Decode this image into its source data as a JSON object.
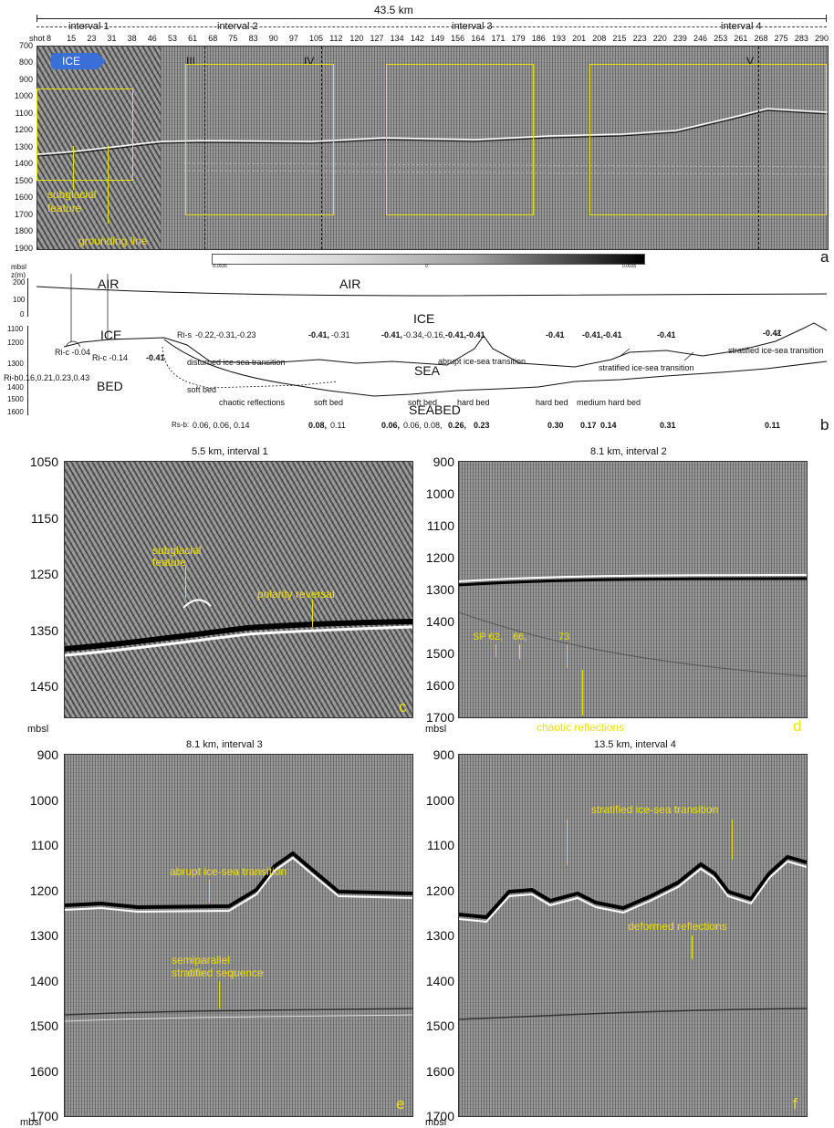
{
  "panel_a": {
    "total_length": "43.5 km",
    "intervals": [
      "interval 1",
      "interval 2",
      "interval 3",
      "interval 4"
    ],
    "shot_label": "shot",
    "shots": [
      "8",
      "15",
      "23",
      "31",
      "38",
      "46",
      "53",
      "61",
      "68",
      "75",
      "83",
      "90",
      "97",
      "105",
      "112",
      "120",
      "127",
      "134",
      "142",
      "149",
      "156",
      "164",
      "171",
      "179",
      "186",
      "193",
      "201",
      "208",
      "215",
      "223",
      "220",
      "239",
      "246",
      "253",
      "261",
      "268",
      "275",
      "283",
      "290"
    ],
    "depth_ticks": [
      "700",
      "800",
      "900",
      "1000",
      "1100",
      "1200",
      "1300",
      "1400",
      "1500",
      "1600",
      "1700",
      "1800",
      "1900"
    ],
    "depth_unit": "mbsl",
    "badge": "ICE",
    "markers": [
      "III",
      "IV",
      "V"
    ],
    "annotations": {
      "subglacial": "subglacial\nfeature",
      "grounding": "grounding line"
    },
    "letter": "a"
  },
  "panel_b": {
    "unit1": "mbsl",
    "unit2": "z(m)",
    "upper_ticks": [
      "200",
      "100",
      "0"
    ],
    "lower_ticks": [
      "1100",
      "1200",
      "1300",
      "1400",
      "1500",
      "1600"
    ],
    "air_left": "AIR",
    "air_center": "AIR",
    "ice_left": "ICE",
    "ice_center": "ICE",
    "sea": "SEA",
    "bed": "BED",
    "seabed": "SEABED",
    "r_is_label": "Ri-s",
    "r_is_values": [
      "-0.22,-0.31,-0.23",
      "-0.41,",
      "-0.31",
      "-0.41,",
      "-0.34,-0.16,",
      "-0.41,-0.41",
      "-0.41",
      "-0.41,-0.41",
      "-0.41",
      "-0.41"
    ],
    "r_ic_a": "Ri-c -0.04",
    "r_ic_b": "Ri-c -0.14",
    "r_ic_b_bold": "-0.41",
    "r_bb_left": "Ri-b0.16,0.21,0.23,0.43",
    "transitions": [
      "disturbed ice-sea transition",
      "abrupt ice-sea transition",
      "stratified ice-sea transition",
      "stratified ice-sea transition"
    ],
    "bed_labels": [
      "soft bed",
      "chaotic reflections",
      "soft bed",
      "soft bed",
      "hard bed",
      "hard bed",
      "medium hard bed"
    ],
    "r_sb_label": "Rs-b:",
    "r_sb_values": [
      "0.06, 0.06, 0.14",
      "0.08,",
      "0.11",
      "0.06,",
      "0.06, 0.08,",
      "0.26,",
      "0.23",
      "0.30",
      "0.17",
      "0.14",
      "0.31",
      "0.11"
    ],
    "letter": "b",
    "colorbar_left": "-0.0035",
    "colorbar_mid": "0",
    "colorbar_right": "0.0035"
  },
  "panel_c": {
    "title": "5.5 km, interval 1",
    "ticks": [
      "1050",
      "1150",
      "1250",
      "1350",
      "1450"
    ],
    "unit": "mbsl",
    "labels": [
      "subglacial\nfeature",
      "polarity reversal"
    ],
    "letter": "c"
  },
  "panel_d": {
    "title": "8.1 km, interval 2",
    "ticks": [
      "900",
      "1000",
      "1100",
      "1200",
      "1300",
      "1400",
      "1500",
      "1600",
      "1700"
    ],
    "unit": "mbsl",
    "labels": [
      "SP 62,",
      "66,",
      "73",
      "chaotic reflections"
    ],
    "letter": "d"
  },
  "panel_e": {
    "title": "8.1 km, interval 3",
    "ticks": [
      "900",
      "1000",
      "1100",
      "1200",
      "1300",
      "1400",
      "1500",
      "1600",
      "1700"
    ],
    "unit": "mbsl",
    "labels": [
      "abrupt ice-sea transition",
      "semiparallel\nstratified sequence"
    ],
    "letter": "e"
  },
  "panel_f": {
    "title": "13.5 km, interval 4",
    "ticks": [
      "900",
      "1000",
      "1100",
      "1200",
      "1300",
      "1400",
      "1500",
      "1600",
      "1700"
    ],
    "unit": "mbsl",
    "labels": [
      "stratified ice-sea transition",
      "deformed reflections"
    ],
    "letter": "f"
  }
}
